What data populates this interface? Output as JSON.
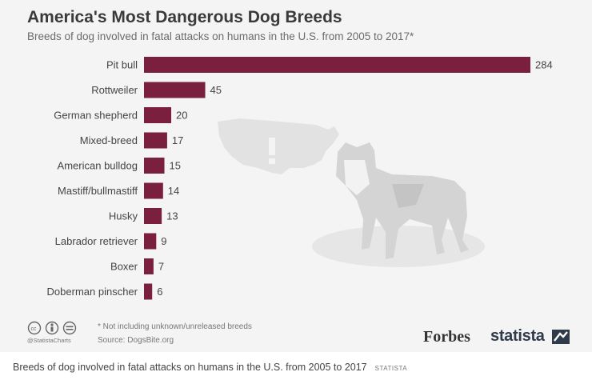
{
  "colors": {
    "bar": "#7a1f3d",
    "background": "#f4f4f4",
    "illustration": "#e0e0e0"
  },
  "chart_data": {
    "type": "bar",
    "orientation": "horizontal",
    "title": "America's Most Dangerous Dog Breeds",
    "subtitle": "Breeds of dog involved in fatal attacks on humans in the U.S. from 2005 to 2017*",
    "categories": [
      "Pit bull",
      "Rottweiler",
      "German shepherd",
      "Mixed-breed",
      "American bulldog",
      "Mastiff/bullmastiff",
      "Husky",
      "Labrador retriever",
      "Boxer",
      "Doberman pinscher"
    ],
    "values": [
      284,
      45,
      20,
      17,
      15,
      14,
      13,
      9,
      7,
      6
    ],
    "xlabel": "",
    "ylabel": "",
    "xlim": [
      0,
      284
    ],
    "grid": false,
    "legend": "none"
  },
  "footer": {
    "note": "* Not including unknown/unreleased breeds",
    "source": "Source: DogsBite.org",
    "handle": "@StatistaCharts",
    "brand_forbes": "Forbes",
    "brand_statista": "statista"
  },
  "caption": {
    "text": "Breeds of dog involved in fatal attacks on humans in the U.S. from 2005 to 2017",
    "brand": "STATISTA"
  }
}
